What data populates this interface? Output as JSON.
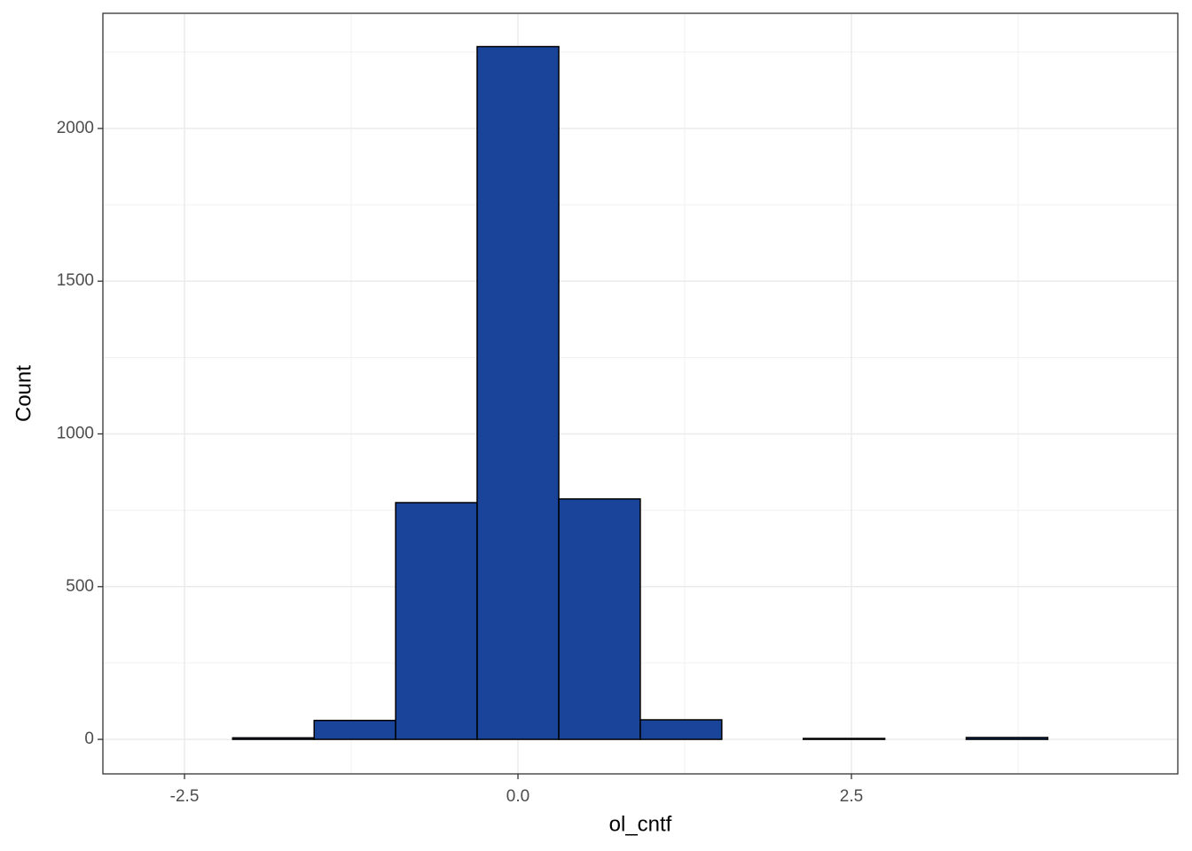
{
  "chart_data": {
    "type": "histogram",
    "x_label": "ol_cntf",
    "y_label": "Count",
    "bins": [
      -2.75,
      -2.139,
      -1.528,
      -0.917,
      -0.306,
      0.306,
      0.917,
      1.528,
      2.139,
      2.75,
      3.361,
      3.972,
      4.583
    ],
    "values": [
      0,
      5,
      62,
      775,
      2268,
      787,
      64,
      0,
      3,
      0,
      6,
      0
    ],
    "color": "#19449a",
    "edge_color": "#000000",
    "xlim": [
      -3.112,
      4.947
    ],
    "xticks": [
      {
        "value": -2.5,
        "label": "-2.5"
      },
      {
        "value": 0,
        "label": "0.0"
      },
      {
        "value": 2.5,
        "label": "2.5"
      }
    ],
    "ylim": [
      -113,
      2377
    ],
    "yticks": [
      0,
      500,
      1000,
      1500,
      2000
    ],
    "grid": true
  }
}
